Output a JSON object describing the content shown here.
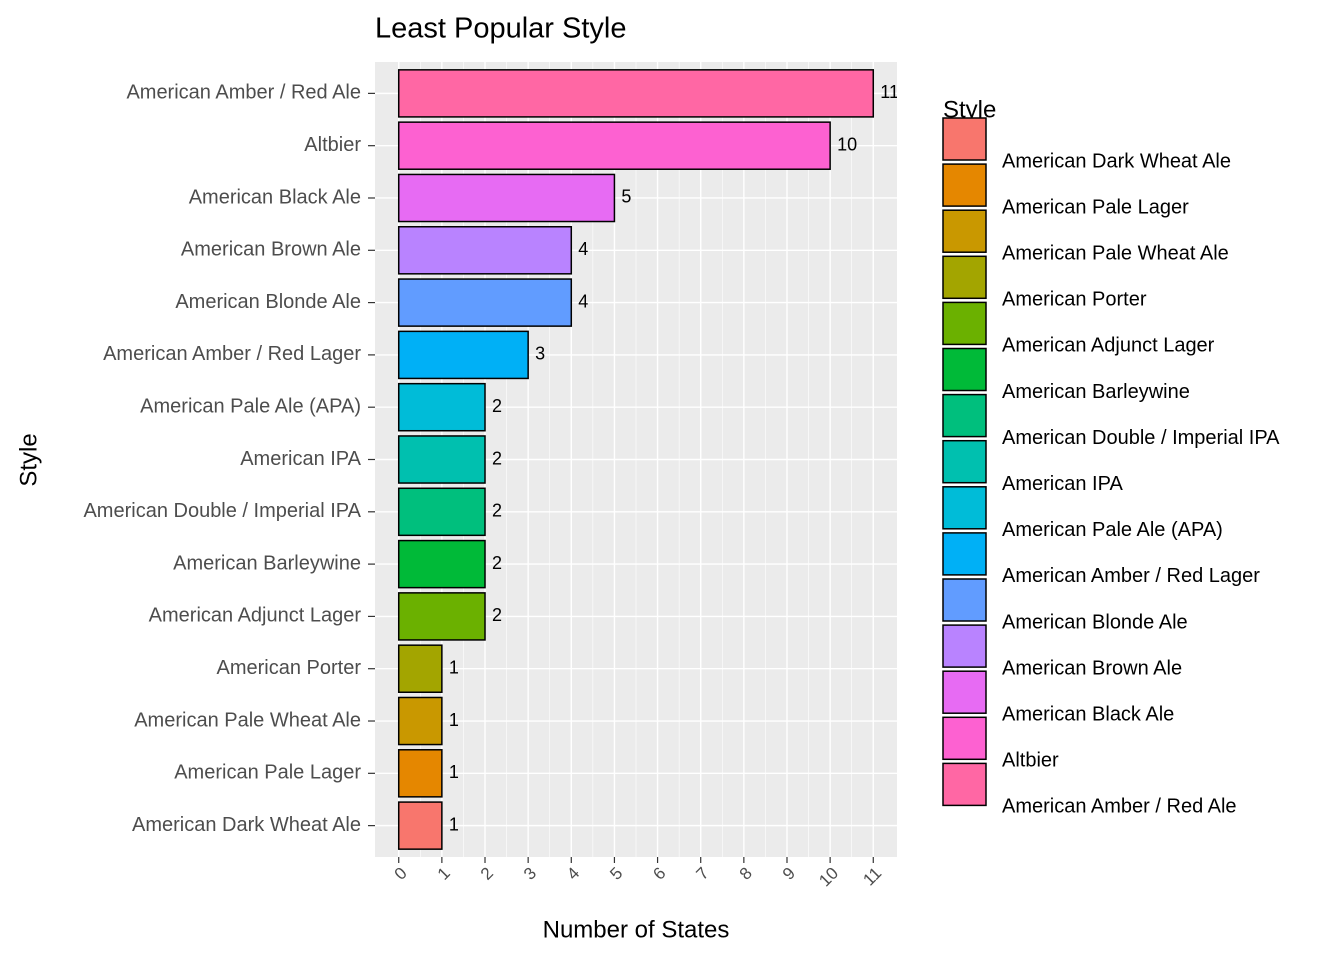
{
  "chart_data": {
    "type": "bar",
    "orientation": "horizontal",
    "title": "Least Popular Style",
    "x_label": "Number of States",
    "y_label": "Style",
    "legend_title": "Style",
    "categories": [
      "American Dark Wheat Ale",
      "American Pale Lager",
      "American Pale Wheat Ale",
      "American Porter",
      "American Adjunct Lager",
      "American Barleywine",
      "American Double / Imperial IPA",
      "American IPA",
      "American Pale Ale (APA)",
      "American Amber / Red Lager",
      "American Blonde Ale",
      "American Brown Ale",
      "American Black Ale",
      "Altbier",
      "American Amber / Red Ale"
    ],
    "values": [
      1,
      1,
      1,
      1,
      2,
      2,
      2,
      2,
      2,
      3,
      4,
      4,
      5,
      10,
      11
    ],
    "colors": [
      "#F8766D",
      "#E58700",
      "#C99800",
      "#A3A500",
      "#6BB100",
      "#00BA38",
      "#00BF7D",
      "#00C0AF",
      "#00BCD8",
      "#00B0F6",
      "#619CFF",
      "#B983FF",
      "#E76BF3",
      "#FD61D1",
      "#FF67A4"
    ],
    "xlim": [
      -0.55,
      11.55
    ],
    "xticks": [
      0,
      1,
      2,
      3,
      4,
      5,
      6,
      7,
      8,
      9,
      10,
      11
    ],
    "grid": true,
    "legend": "right"
  }
}
